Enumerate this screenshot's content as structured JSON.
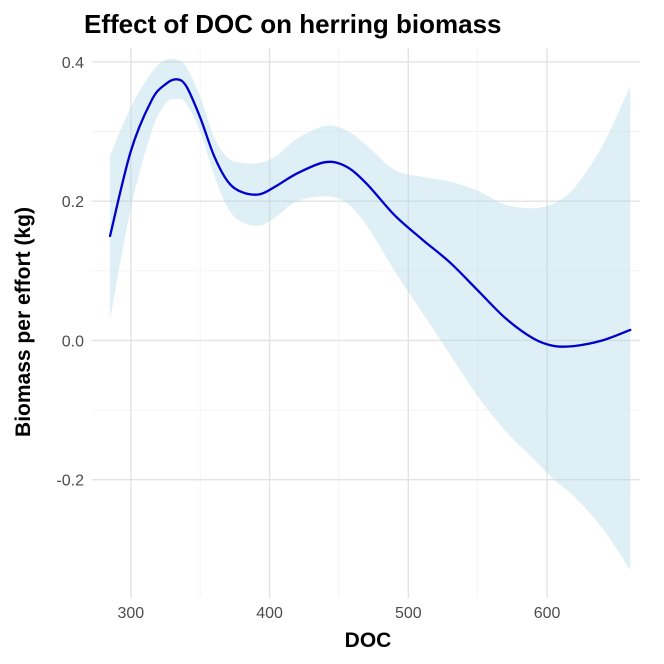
{
  "chart_data": {
    "type": "line",
    "title": "Effect of DOC on herring biomass",
    "xlabel": "DOC",
    "ylabel": "Biomass per effort (kg)",
    "xlim": [
      272,
      667
    ],
    "ylim": [
      -0.37,
      0.42
    ],
    "x_ticks": [
      300,
      400,
      500,
      600
    ],
    "x_tick_labels": [
      "300",
      "400",
      "500",
      "600"
    ],
    "y_ticks": [
      -0.2,
      0.0,
      0.2,
      0.4
    ],
    "y_tick_labels": [
      "-0.2",
      "0.0",
      "0.2",
      "0.4"
    ],
    "grid": true,
    "legend": "none",
    "colors": {
      "line": "#0000cc",
      "ribbon": "#add8e6",
      "grid_major": "#e3e3e3",
      "grid_minor": "#f2f2f2"
    },
    "series": [
      {
        "x": [
          285,
          300,
          315,
          325,
          333,
          340,
          350,
          360,
          370,
          380,
          393,
          405,
          420,
          440,
          455,
          470,
          490,
          510,
          530,
          550,
          570,
          590,
          605,
          620,
          640,
          660
        ],
        "y": [
          0.15,
          0.272,
          0.345,
          0.368,
          0.375,
          0.365,
          0.32,
          0.265,
          0.228,
          0.213,
          0.21,
          0.222,
          0.24,
          0.256,
          0.25,
          0.225,
          0.18,
          0.145,
          0.112,
          0.072,
          0.032,
          0.003,
          -0.008,
          -0.008,
          0.0,
          0.015
        ],
        "lower": [
          0.03,
          0.19,
          0.3,
          0.34,
          0.347,
          0.34,
          0.3,
          0.238,
          0.19,
          0.17,
          0.165,
          0.178,
          0.2,
          0.207,
          0.198,
          0.165,
          0.1,
          0.04,
          -0.02,
          -0.08,
          -0.13,
          -0.17,
          -0.2,
          -0.225,
          -0.27,
          -0.33
        ],
        "upper": [
          0.265,
          0.335,
          0.385,
          0.403,
          0.403,
          0.393,
          0.35,
          0.292,
          0.262,
          0.255,
          0.255,
          0.265,
          0.29,
          0.308,
          0.302,
          0.28,
          0.245,
          0.235,
          0.228,
          0.215,
          0.195,
          0.19,
          0.197,
          0.22,
          0.28,
          0.365
        ]
      }
    ]
  }
}
